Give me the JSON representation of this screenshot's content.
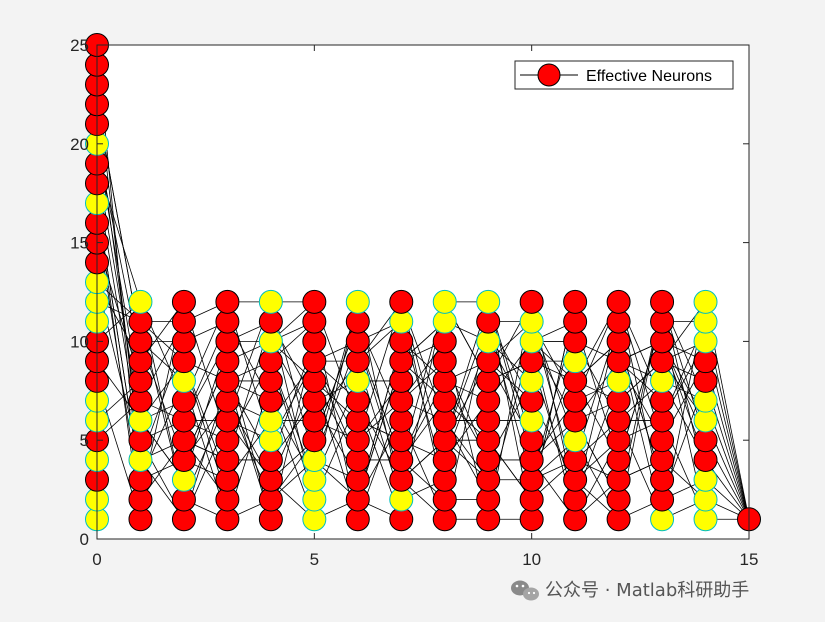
{
  "chart_data": {
    "type": "scatter",
    "title": "",
    "xlabel": "",
    "ylabel": "",
    "xlim": [
      0,
      15
    ],
    "ylim": [
      0,
      25
    ],
    "xticks": [
      0,
      5,
      10,
      15
    ],
    "yticks": [
      0,
      5,
      10,
      15,
      20,
      25
    ],
    "x_tick_labels": [
      "0",
      "5",
      "10",
      "15"
    ],
    "y_tick_labels": [
      "0",
      "5",
      "10",
      "15",
      "20",
      "25"
    ],
    "grid": false,
    "legend": {
      "entry": "Effective Neurons",
      "placement": "top-right"
    },
    "colors": {
      "effective": "#ff0000",
      "ineffective": "#ffff00",
      "edge": "#000000",
      "ineffective_edge": "#00bfbf"
    },
    "layers": [
      {
        "x": 0,
        "count": 25,
        "yellow": [
          1,
          2,
          4,
          6,
          7,
          11,
          12,
          13,
          17,
          20
        ]
      },
      {
        "x": 1,
        "count": 12,
        "yellow": [
          4,
          6,
          12
        ]
      },
      {
        "x": 2,
        "count": 12,
        "yellow": [
          3,
          8
        ]
      },
      {
        "x": 3,
        "count": 12,
        "yellow": []
      },
      {
        "x": 4,
        "count": 12,
        "yellow": [
          5,
          6,
          10,
          12
        ]
      },
      {
        "x": 5,
        "count": 12,
        "yellow": [
          1,
          2,
          3,
          4
        ]
      },
      {
        "x": 6,
        "count": 12,
        "yellow": [
          8,
          12
        ]
      },
      {
        "x": 7,
        "count": 12,
        "yellow": [
          2,
          11
        ]
      },
      {
        "x": 8,
        "count": 12,
        "yellow": [
          11,
          12
        ]
      },
      {
        "x": 9,
        "count": 12,
        "yellow": [
          10,
          12
        ]
      },
      {
        "x": 10,
        "count": 12,
        "yellow": [
          6,
          8,
          10,
          11
        ]
      },
      {
        "x": 11,
        "count": 12,
        "yellow": [
          5,
          9
        ]
      },
      {
        "x": 12,
        "count": 12,
        "yellow": [
          8
        ]
      },
      {
        "x": 13,
        "count": 12,
        "yellow": [
          1,
          8
        ]
      },
      {
        "x": 14,
        "count": 12,
        "yellow": [
          1,
          2,
          3,
          6,
          7,
          10,
          11,
          12
        ]
      },
      {
        "x": 15,
        "count": 1,
        "yellow": []
      }
    ]
  },
  "watermark": {
    "icon": "wechat-icon",
    "text": "公众号 · Matlab科研助手"
  }
}
